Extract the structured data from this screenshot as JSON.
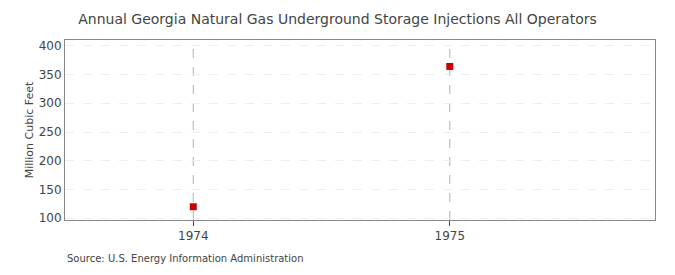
{
  "chart_data": {
    "type": "scatter",
    "title": "Annual Georgia Natural Gas Underground Storage Injections All Operators",
    "y_label": "Million Cubic Feet",
    "annotations": [
      "Source: U.S. Energy Information Administration"
    ],
    "x": [
      1974,
      1975
    ],
    "values": [
      120,
      364
    ],
    "color": "#cc0000",
    "marker": "square",
    "xlim": [
      1973.5,
      1975.8
    ],
    "xticks": [
      1974,
      1975
    ],
    "ylim": [
      97,
      410
    ],
    "yticks": [
      100,
      150,
      200,
      250,
      300,
      350,
      400
    ],
    "grid": true
  }
}
